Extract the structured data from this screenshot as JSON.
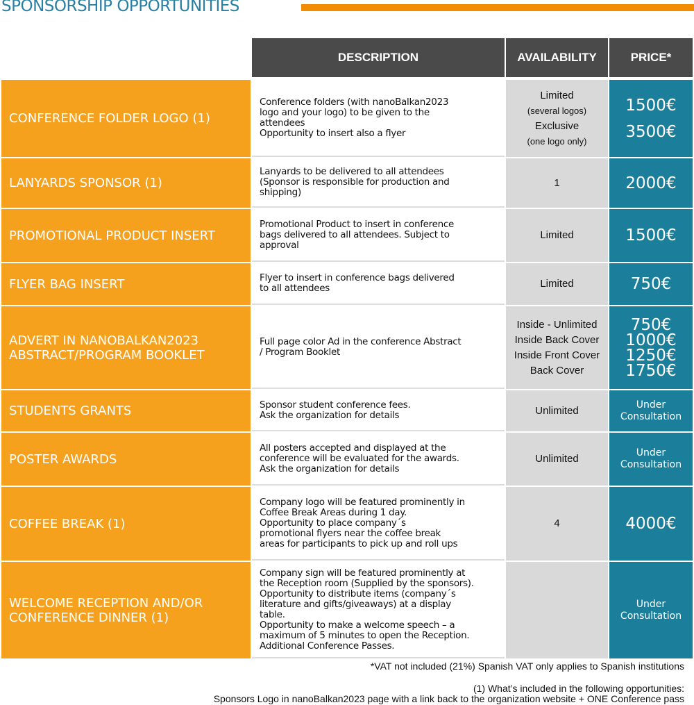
{
  "title": "SPONSORSHIP OPPORTUNITIES",
  "colors": {
    "label_bg": "#f5a11e",
    "price_bg": "#1b7f9c",
    "header_bg": "#4a4a4a",
    "availability_bg": "#d9d9d9",
    "title": "#2a80a3",
    "accent_bar": "#f28c00"
  },
  "headers": {
    "description": "DESCRIPTION",
    "availability": "AVAILABILITY",
    "price": "PRICE*"
  },
  "rows": [
    {
      "label": "CONFERENCE FOLDER LOGO (1)",
      "description": [
        "Conference folders (with nanoBalkan2023",
        "logo and your logo) to be given to the",
        "attendees",
        "Opportunity to insert also a flyer"
      ],
      "availability": [
        "Limited",
        "(several logos)",
        "Exclusive",
        "(one logo only)"
      ],
      "price": [
        "1500€",
        "3500€"
      ]
    },
    {
      "label": "LANYARDS SPONSOR (1)",
      "description": [
        "Lanyards to be delivered to all attendees",
        "(Sponsor is responsible for production and",
        "shipping)"
      ],
      "availability": [
        "1"
      ],
      "price": [
        "2000€"
      ]
    },
    {
      "label": "PROMOTIONAL PRODUCT INSERT",
      "description": [
        "Promotional Product to insert in conference",
        "bags delivered to all attendees. Subject to",
        "approval"
      ],
      "availability": [
        "Limited"
      ],
      "price": [
        "1500€"
      ]
    },
    {
      "label": "FLYER BAG INSERT",
      "description": [
        "Flyer to insert in conference bags delivered",
        "to all attendees"
      ],
      "availability": [
        "Limited"
      ],
      "price": [
        "750€"
      ]
    },
    {
      "label": "ADVERT IN NANOBALKAN2023 ABSTRACT/PROGRAM BOOKLET",
      "description": [
        "Full page color Ad in the  conference Abstract",
        "/ Program Booklet"
      ],
      "availability": [
        "Inside - Unlimited",
        "Inside Back Cover",
        "Inside Front Cover",
        "Back Cover"
      ],
      "price": [
        "750€",
        "1000€",
        "1250€",
        "1750€"
      ]
    },
    {
      "label": "STUDENTS GRANTS",
      "description": [
        "Sponsor student conference fees.",
        "Ask the organization for details"
      ],
      "availability": [
        "Unlimited"
      ],
      "price": [
        "Under",
        "Consultation"
      ]
    },
    {
      "label": "POSTER AWARDS",
      "description": [
        "All posters accepted and displayed at the",
        "conference will be evaluated for the awards.",
        "Ask the organization for details"
      ],
      "availability": [
        "Unlimited"
      ],
      "price": [
        "Under",
        "Consultation"
      ]
    },
    {
      "label": "COFFEE BREAK (1)",
      "description": [
        "Company logo will be featured prominently in",
        "Coffee Break Areas during 1 day.",
        "Opportunity to place company´s",
        "promotional flyers near the coffee break",
        "areas for participants to pick up and roll ups"
      ],
      "availability": [
        "4"
      ],
      "price": [
        "4000€"
      ]
    },
    {
      "label": "WELCOME RECEPTION AND/OR CONFERENCE DINNER (1)",
      "description": [
        "Company sign will be featured prominently at",
        "the Reception room (Supplied by the sponsors).",
        "Opportunity to distribute items (company´s",
        "literature and gifts/giveaways) at a display",
        "table.",
        "Opportunity to make a welcome speech – a",
        "maximum of 5 minutes to open the Reception.",
        "Additional Conference Passes."
      ],
      "availability": [],
      "price": [
        "Under",
        "Consultation"
      ]
    }
  ],
  "footnotes": {
    "vat": "*VAT not included (21%) Spanish VAT only applies to Spanish institutions",
    "included_title": "(1) What’s included in the following opportunities:",
    "included_text": "Sponsors Logo in nanoBalkan2023 page with a link back to the organization website + ONE Conference pass"
  }
}
